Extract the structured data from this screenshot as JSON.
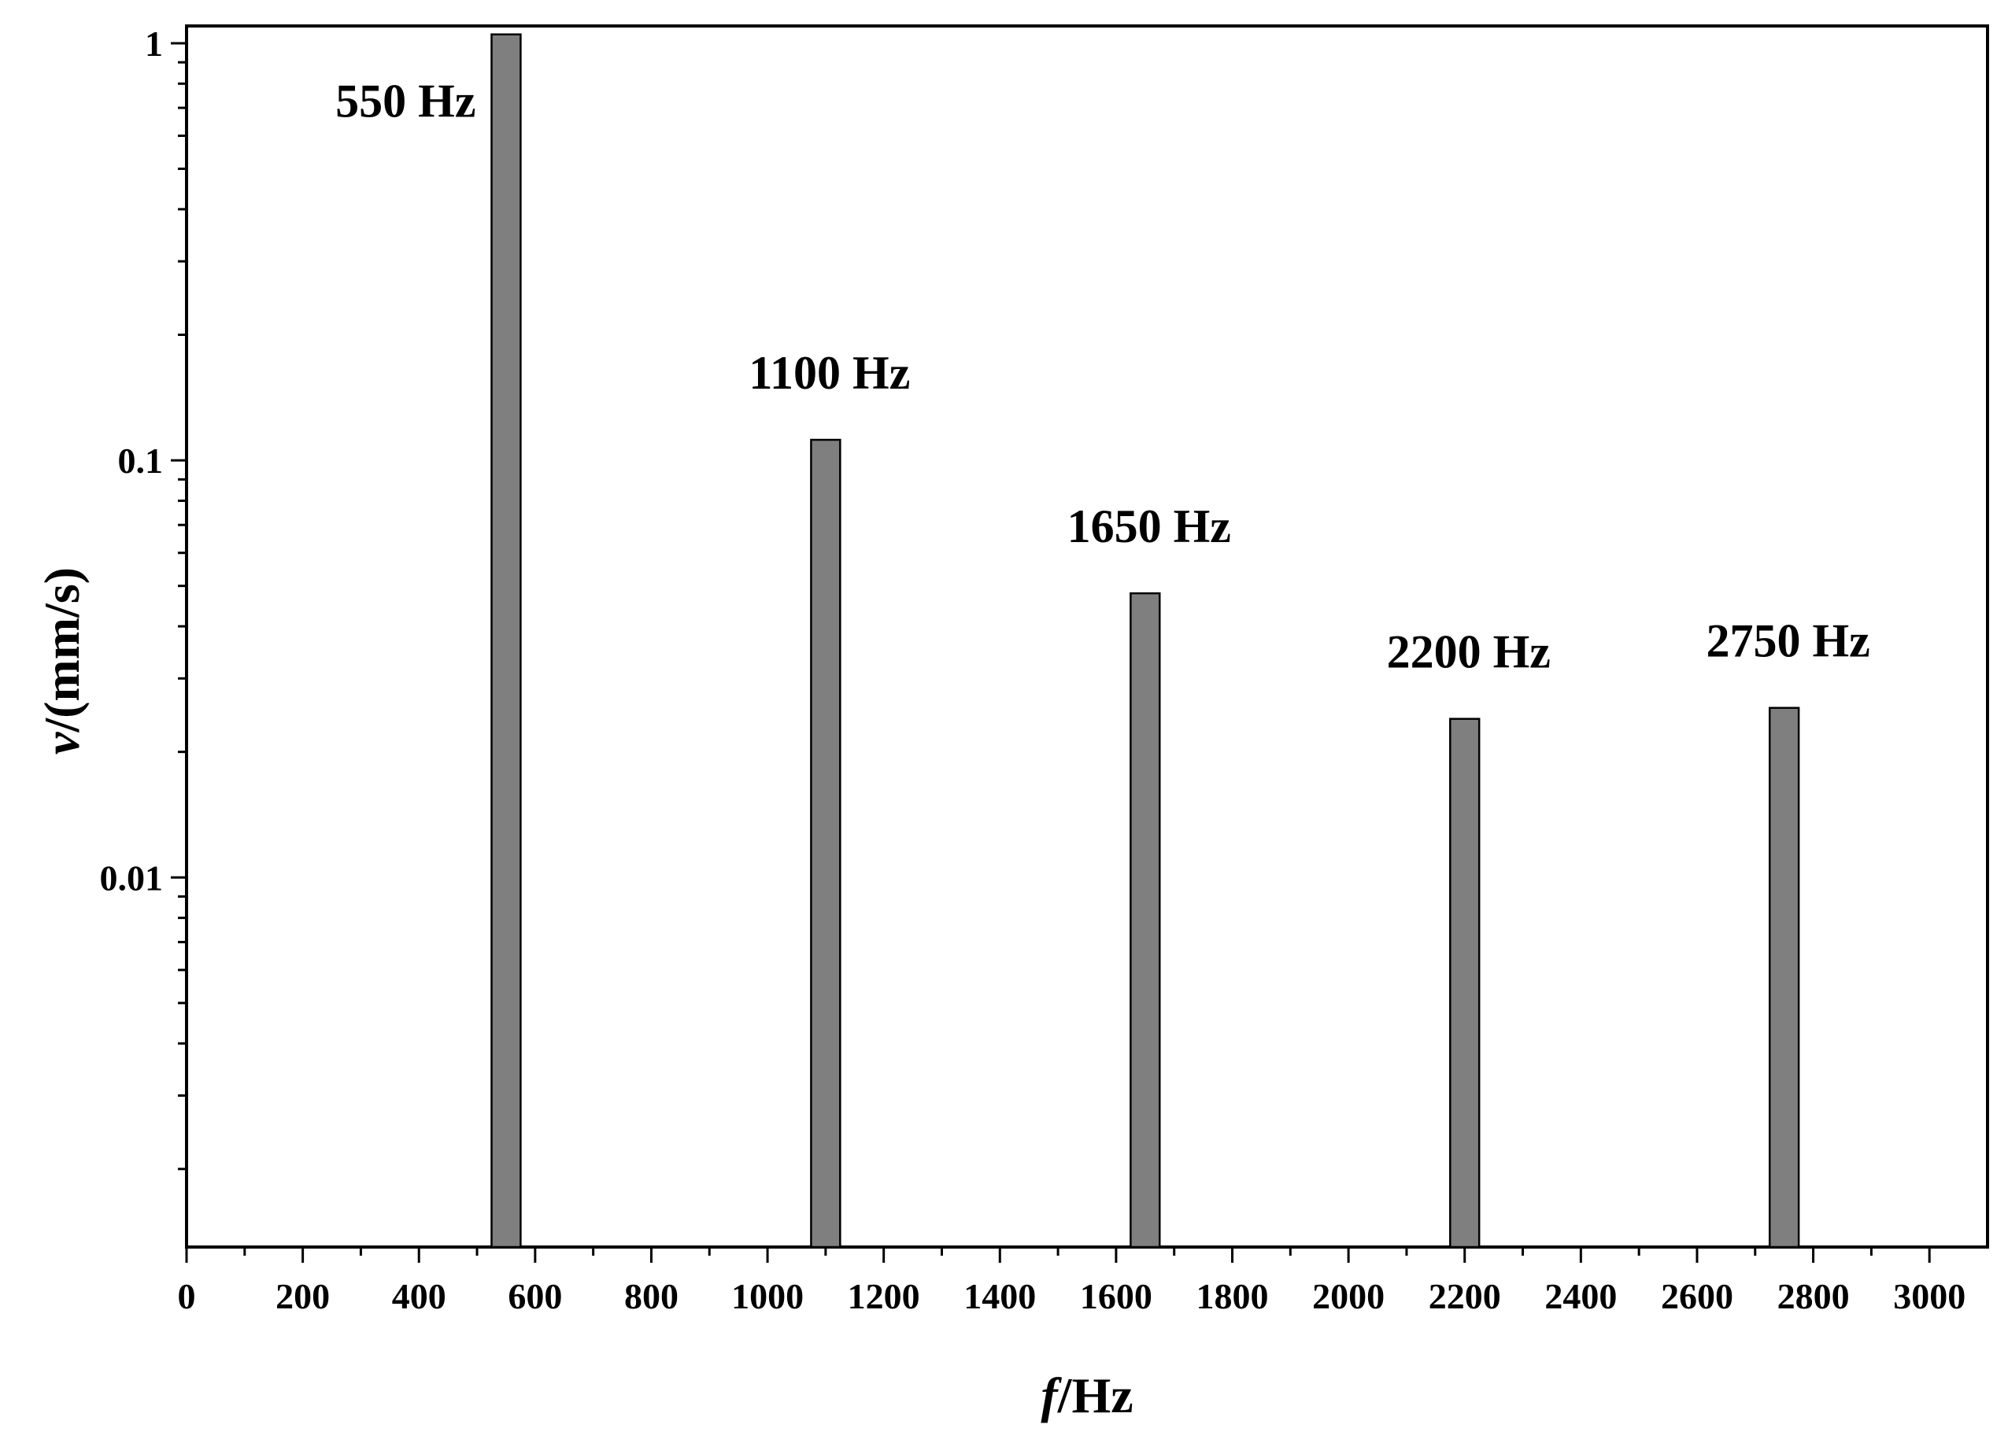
{
  "chart_data": {
    "type": "bar",
    "title": "",
    "xlabel_italic": "f",
    "xlabel_rest": "/Hz",
    "ylabel_italic": "v",
    "ylabel_rest": "/(mm/s)",
    "x_scale": "linear",
    "y_scale": "log",
    "xlim": [
      0,
      3100
    ],
    "ylim": [
      0.0013,
      1.1
    ],
    "x_major_ticks": [
      0,
      200,
      400,
      600,
      800,
      1000,
      1200,
      1400,
      1600,
      1800,
      2000,
      2200,
      2400,
      2600,
      2800,
      3000
    ],
    "x_tick_labels": [
      "0",
      "200",
      "400",
      "600",
      "800",
      "1000",
      "1200",
      "1400",
      "1600",
      "1800",
      "2000",
      "2200",
      "2400",
      "2600",
      "2800",
      "3000"
    ],
    "y_major_ticks": [
      1,
      0.1,
      0.01
    ],
    "y_tick_labels": [
      "1",
      "0.1",
      "0.01"
    ],
    "bar_width_hz": 50,
    "bar_color": "#7f7f7f",
    "series": [
      {
        "name": "velocity",
        "x": [
          550,
          1100,
          1650,
          2200,
          2750
        ],
        "values": [
          1.05,
          0.112,
          0.048,
          0.024,
          0.0255
        ],
        "labels": [
          "550 Hz",
          "1100 Hz",
          "1650 Hz",
          "2200 Hz",
          "2750 Hz"
        ]
      }
    ],
    "legend": "none",
    "grid": false
  }
}
